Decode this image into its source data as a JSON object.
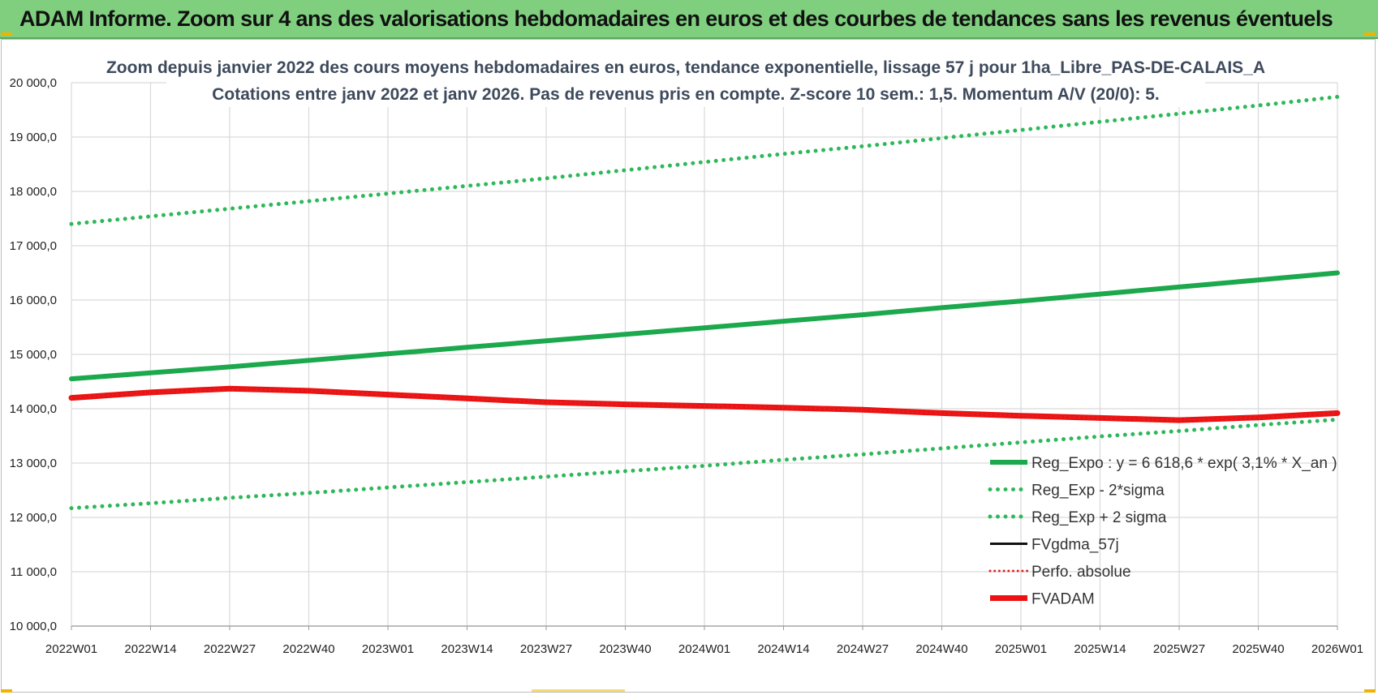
{
  "banner": {
    "title": "ADAM Informe. Zoom sur 4 ans des valorisations hebdomadaires en euros et des courbes de tendances sans les revenus éventuels"
  },
  "colors": {
    "banner_bg": "#7fcf7f",
    "trend_green": "#1ca84c",
    "band_green": "#2eb85a",
    "fvadam_red": "#ee1111",
    "perfo_red": "#dd2222",
    "fvgdma_black": "#111111"
  },
  "chart_data": {
    "type": "line",
    "title": [
      "Zoom depuis janvier 2022 des cours moyens hebdomadaires en euros, tendance exponentielle, lissage 57 j pour 1ha_Libre_PAS-DE-CALAIS_A",
      "Cotations entre janv 2022 et janv 2026. Pas de revenus pris en compte. Z-score 10 sem.: 1,5. Momentum A/V (20/0): 5."
    ],
    "x_categories": [
      "2022W01",
      "2022W14",
      "2022W27",
      "2022W40",
      "2023W01",
      "2023W14",
      "2023W27",
      "2023W40",
      "2024W01",
      "2024W14",
      "2024W27",
      "2024W40",
      "2025W01",
      "2025W14",
      "2025W27",
      "2025W40",
      "2026W01"
    ],
    "ylim": [
      10000,
      20000
    ],
    "y_ticks": [
      10000,
      11000,
      12000,
      13000,
      14000,
      15000,
      16000,
      17000,
      18000,
      19000,
      20000
    ],
    "y_tick_labels": [
      "10 000,0",
      "11 000,0",
      "12 000,0",
      "13 000,0",
      "14 000,0",
      "15 000,0",
      "16 000,0",
      "17 000,0",
      "18 000,0",
      "19 000,0",
      "20 000,0"
    ],
    "grid": true,
    "legend_position": "bottom-right",
    "series": [
      {
        "name": "Reg_Expo : y = 6 618,6 * exp( 3,1% *  X_an )",
        "style": "solid",
        "color": "#1ca84c",
        "width": 6,
        "values": [
          14550,
          14660,
          14770,
          14890,
          15010,
          15130,
          15250,
          15370,
          15490,
          15610,
          15730,
          15860,
          15980,
          16110,
          16240,
          16370,
          16500
        ]
      },
      {
        "name": "Reg_Exp - 2*sigma",
        "style": "dotted",
        "color": "#2eb85a",
        "width": 5,
        "values": [
          12170,
          12260,
          12360,
          12450,
          12550,
          12650,
          12750,
          12850,
          12950,
          13060,
          13160,
          13270,
          13380,
          13490,
          13590,
          13700,
          13800
        ]
      },
      {
        "name": "Reg_Exp + 2 sigma",
        "style": "dotted",
        "color": "#2eb85a",
        "width": 5,
        "values": [
          17400,
          17540,
          17680,
          17820,
          17960,
          18100,
          18240,
          18390,
          18540,
          18690,
          18830,
          18980,
          19130,
          19280,
          19430,
          19580,
          19740
        ]
      },
      {
        "name": "FVgdma_57j",
        "style": "solid",
        "color": "#111111",
        "width": 3,
        "values": [
          14200,
          14300,
          14360,
          14330,
          14260,
          14190,
          14120,
          14080,
          14050,
          14020,
          13980,
          13920,
          13870,
          13830,
          13790,
          13830,
          13920
        ]
      },
      {
        "name": "Perfo. absolue",
        "style": "dotted",
        "color": "#dd2222",
        "width": 3,
        "values": [
          14200,
          14300,
          14360,
          14330,
          14260,
          14190,
          14120,
          14080,
          14050,
          14020,
          13980,
          13920,
          13870,
          13830,
          13790,
          13830,
          13920
        ]
      },
      {
        "name": "FVADAM",
        "style": "solid",
        "color": "#ee1111",
        "width": 7,
        "values": [
          14200,
          14300,
          14370,
          14330,
          14260,
          14190,
          14120,
          14080,
          14050,
          14020,
          13980,
          13920,
          13870,
          13830,
          13790,
          13840,
          13920
        ]
      }
    ]
  }
}
